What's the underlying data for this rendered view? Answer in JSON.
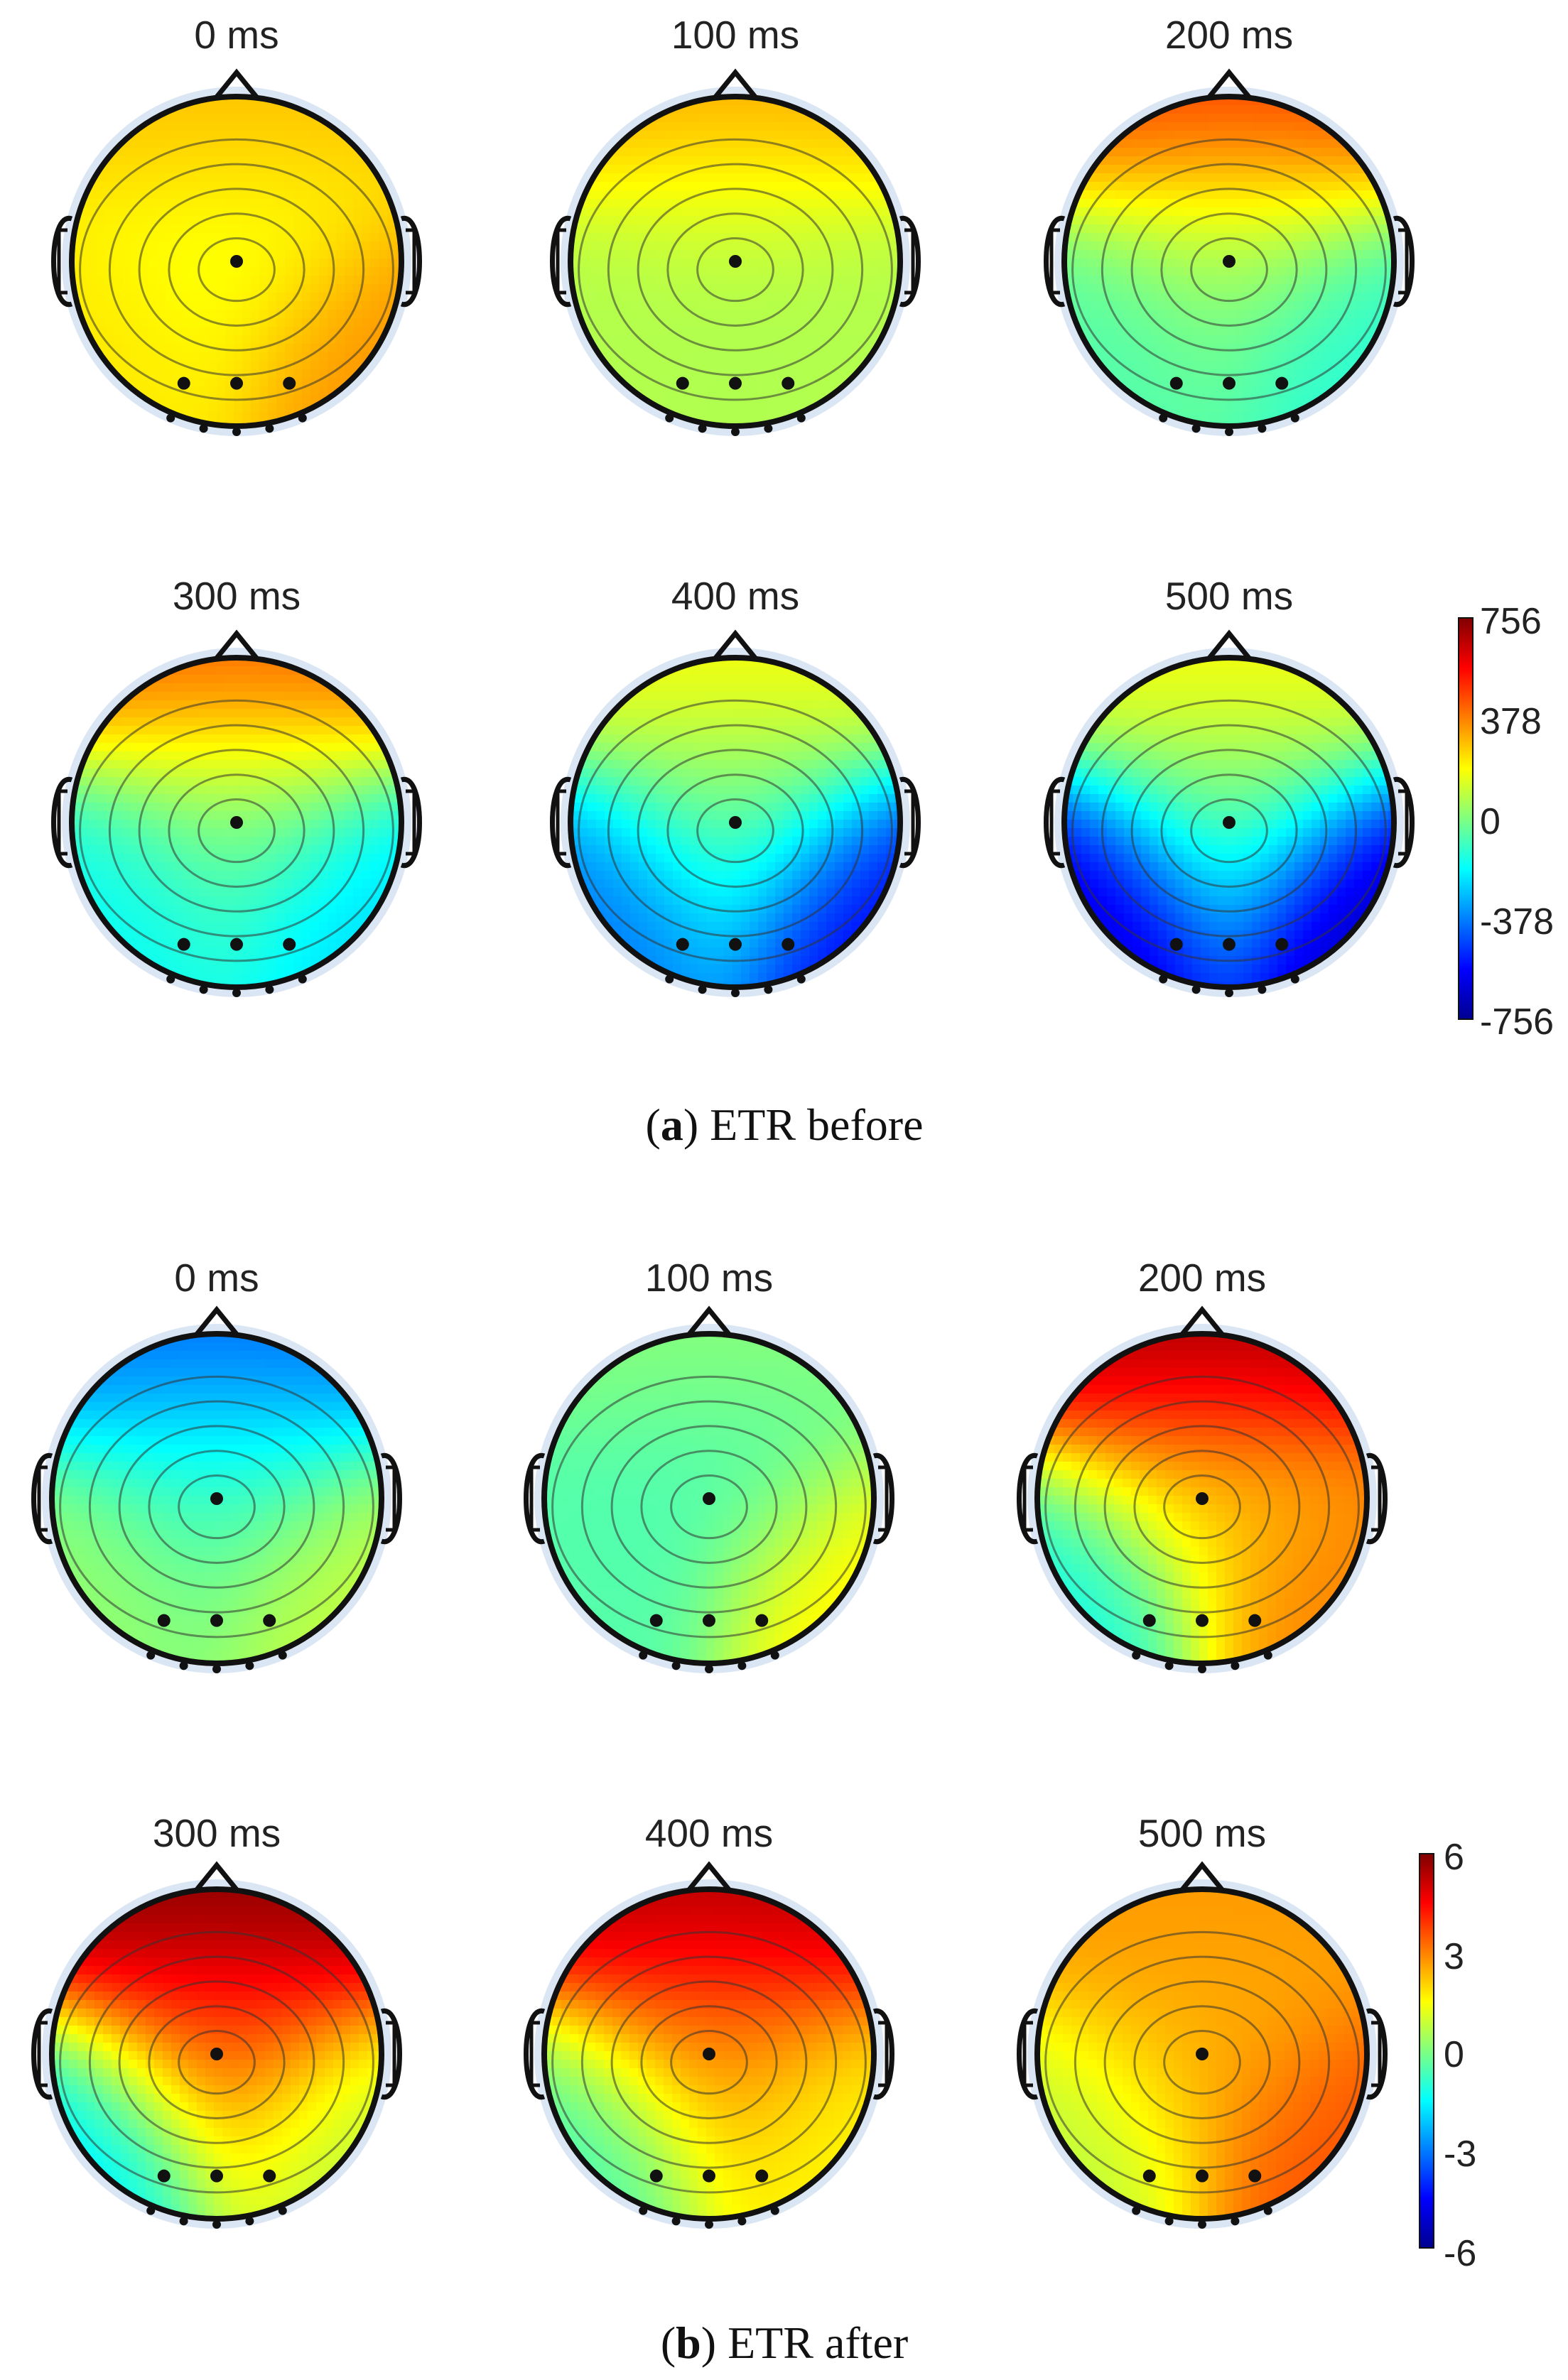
{
  "panels": [
    {
      "caption_letter": "a",
      "caption_text": "ETR before",
      "colorbar": {
        "ticks": [
          "756",
          "378",
          "0",
          "-378",
          "-756"
        ],
        "range": [
          -756,
          756
        ]
      },
      "maps": [
        {
          "label": "0 ms",
          "levels": {
            "frontal": 0.38,
            "center": 0.2,
            "left_post": 0.3,
            "right_post": 0.48
          }
        },
        {
          "label": "100 ms",
          "levels": {
            "frontal": 0.42,
            "center": 0.08,
            "left_post": 0.1,
            "right_post": 0.1
          }
        },
        {
          "label": "200 ms",
          "levels": {
            "frontal": 0.65,
            "center": 0.02,
            "left_post": -0.1,
            "right_post": -0.18
          }
        },
        {
          "label": "300 ms",
          "levels": {
            "frontal": 0.58,
            "center": -0.05,
            "left_post": -0.25,
            "right_post": -0.33
          }
        },
        {
          "label": "400 ms",
          "levels": {
            "frontal": 0.25,
            "center": -0.05,
            "left_post": -0.55,
            "right_post": -0.8
          }
        },
        {
          "label": "500 ms",
          "levels": {
            "frontal": 0.25,
            "center": -0.05,
            "left_post": -0.9,
            "right_post": -0.95
          }
        }
      ]
    },
    {
      "caption_letter": "b",
      "caption_text": "ETR after",
      "colorbar": {
        "ticks": [
          "6",
          "3",
          "0",
          "-3",
          "-6"
        ],
        "range": [
          -6,
          6
        ]
      },
      "maps": [
        {
          "label": "0 ms",
          "levels": {
            "frontal": -0.55,
            "center": -0.1,
            "left_post": 0.05,
            "right_post": 0.15
          }
        },
        {
          "label": "100 ms",
          "levels": {
            "frontal": 0.02,
            "center": -0.12,
            "left_post": -0.08,
            "right_post": 0.3
          }
        },
        {
          "label": "200 ms",
          "levels": {
            "frontal": 0.95,
            "center": 0.3,
            "left_post": -0.25,
            "right_post": 0.5
          }
        },
        {
          "label": "300 ms",
          "levels": {
            "frontal": 1.0,
            "center": 0.55,
            "left_post": -0.35,
            "right_post": 0.1
          }
        },
        {
          "label": "400 ms",
          "levels": {
            "frontal": 0.92,
            "center": 0.45,
            "left_post": -0.15,
            "right_post": 0.25
          }
        },
        {
          "label": "500 ms",
          "levels": {
            "frontal": 0.45,
            "center": 0.4,
            "left_post": 0.1,
            "right_post": 0.6
          }
        }
      ]
    }
  ],
  "chart_data": [
    {
      "type": "heatmap",
      "title": "ETR before",
      "maps": [
        "0 ms",
        "100 ms",
        "200 ms",
        "300 ms",
        "400 ms",
        "500 ms"
      ],
      "colorbar_ticks": [
        756,
        378,
        0,
        -378,
        -756
      ],
      "colorbar_range": [
        -756,
        756
      ]
    },
    {
      "type": "heatmap",
      "title": "ETR after",
      "maps": [
        "0 ms",
        "100 ms",
        "200 ms",
        "300 ms",
        "400 ms",
        "500 ms"
      ],
      "colorbar_ticks": [
        6,
        3,
        0,
        -3,
        -6
      ],
      "colorbar_range": [
        -6,
        6
      ]
    }
  ],
  "colors": {
    "outline": "#111111",
    "ear": "#111111",
    "electrode": "#111111",
    "halo": "#dbe6f4"
  }
}
